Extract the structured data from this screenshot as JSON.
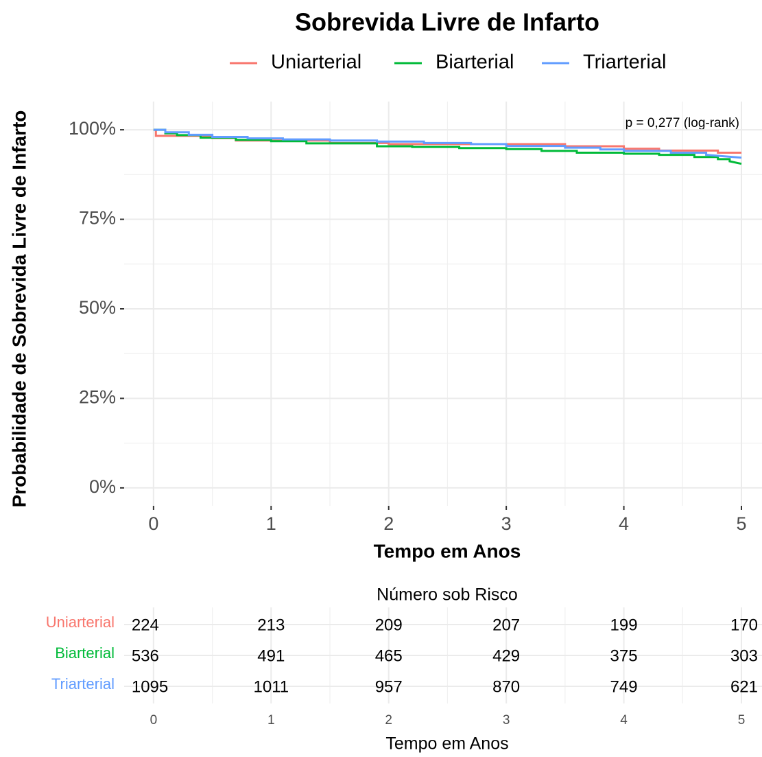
{
  "chart_data": {
    "type": "step",
    "title": "Sobrevida Livre de Infarto",
    "x_label": "Tempo em Anos",
    "y_label": "Probabilidade de Sobrevida Livre de Infarto",
    "annotation": "p = 0,277 (log-rank)",
    "xlim": [
      -0.25,
      5.175
    ],
    "ylim": [
      -5,
      105
    ],
    "xticks": [
      0,
      1,
      2,
      3,
      4,
      5
    ],
    "yticks": [
      {
        "value": 0,
        "label": "0%"
      },
      {
        "value": 25,
        "label": "25%"
      },
      {
        "value": 50,
        "label": "50%"
      },
      {
        "value": 75,
        "label": "75%"
      },
      {
        "value": 100,
        "label": "100%"
      }
    ],
    "grid": true,
    "legend": "top",
    "series": [
      {
        "name": "Uniarterial",
        "color": "#f8766d",
        "x": [
          0,
          0.02,
          0.02,
          0.5,
          0.5,
          0.7,
          0.7,
          1.5,
          1.5,
          2.0,
          2.0,
          3.5,
          3.5,
          4.0,
          4.0,
          4.3,
          4.3,
          4.8,
          4.8,
          5
        ],
        "values": [
          100,
          100,
          98.3,
          98.3,
          97.7,
          97.7,
          97.0,
          97.0,
          96.3,
          96.3,
          96.0,
          96.0,
          95.4,
          95.4,
          94.7,
          94.7,
          94.2,
          94.2,
          93.6,
          93.6
        ]
      },
      {
        "name": "Biarterial",
        "color": "#00ba38",
        "x": [
          0,
          0.1,
          0.1,
          0.2,
          0.2,
          0.4,
          0.4,
          0.7,
          0.7,
          1.0,
          1.0,
          1.3,
          1.3,
          1.9,
          1.9,
          2.2,
          2.2,
          2.6,
          2.6,
          3.0,
          3.0,
          3.3,
          3.3,
          3.6,
          3.6,
          4.0,
          4.0,
          4.3,
          4.3,
          4.6,
          4.6,
          4.8,
          4.8,
          4.9,
          4.9,
          5
        ],
        "values": [
          100,
          100,
          99.0,
          99.0,
          98.5,
          98.5,
          97.8,
          97.8,
          97.2,
          97.2,
          96.8,
          96.8,
          96.2,
          96.2,
          95.4,
          95.4,
          95.2,
          95.2,
          94.9,
          94.9,
          94.6,
          94.6,
          94.1,
          94.1,
          93.6,
          93.6,
          93.3,
          93.3,
          93.0,
          93.0,
          92.4,
          92.4,
          91.8,
          91.8,
          91.2,
          90.5
        ]
      },
      {
        "name": "Triarterial",
        "color": "#619cff",
        "x": [
          0,
          0.1,
          0.1,
          0.3,
          0.3,
          0.5,
          0.5,
          0.8,
          0.8,
          1.1,
          1.1,
          1.5,
          1.5,
          1.9,
          1.9,
          2.3,
          2.3,
          2.7,
          2.7,
          3.0,
          3.0,
          3.5,
          3.5,
          3.8,
          3.8,
          4.0,
          4.0,
          4.4,
          4.4,
          4.7,
          4.7,
          5
        ],
        "values": [
          100,
          100,
          99.3,
          99.3,
          98.6,
          98.6,
          98.0,
          98.0,
          97.6,
          97.6,
          97.3,
          97.3,
          97.0,
          97.0,
          96.7,
          96.7,
          96.3,
          96.3,
          96.0,
          96.0,
          95.5,
          95.5,
          95.0,
          95.0,
          94.5,
          94.5,
          94.1,
          94.1,
          93.6,
          93.6,
          93.0,
          92.2
        ]
      }
    ]
  },
  "risk_table": {
    "title": "Número sob Risco",
    "x_label": "Tempo em Anos",
    "xticks": [
      0,
      1,
      2,
      3,
      4,
      5
    ],
    "rows": [
      {
        "name": "Uniarterial",
        "color": "#f8766d",
        "values": [
          224,
          213,
          209,
          207,
          199,
          170
        ]
      },
      {
        "name": "Biarterial",
        "color": "#00ba38",
        "values": [
          536,
          491,
          465,
          429,
          375,
          303
        ]
      },
      {
        "name": "Triarterial",
        "color": "#619cff",
        "values": [
          1095,
          1011,
          957,
          870,
          749,
          621
        ]
      }
    ]
  }
}
